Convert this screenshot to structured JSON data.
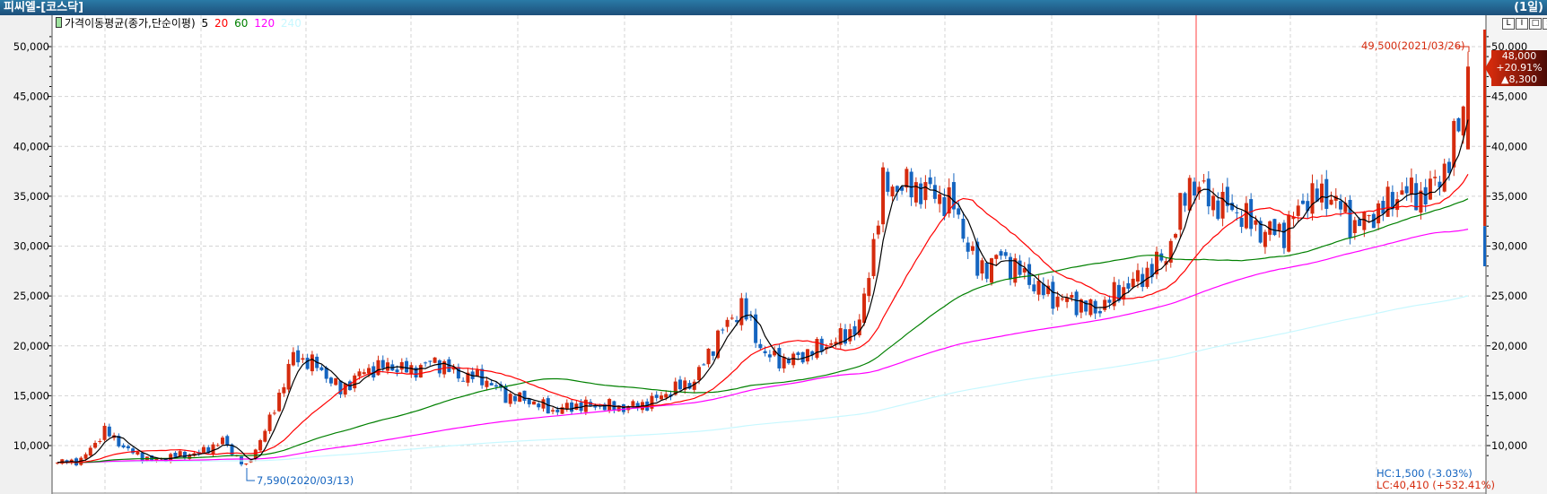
{
  "window": {
    "title": "피씨엘-[코스닥]",
    "period": "(1일)"
  },
  "legend": {
    "name": "가격이동평균(종가,단순이평)",
    "periods": [
      {
        "label": "5",
        "color": "#000000"
      },
      {
        "label": "20",
        "color": "#ff0000"
      },
      {
        "label": "60",
        "color": "#008000"
      },
      {
        "label": "120",
        "color": "#ff00ff"
      },
      {
        "label": "240",
        "color": "#c8f8ff"
      }
    ]
  },
  "window_buttons": [
    "L",
    "I",
    "□",
    "×"
  ],
  "current": {
    "price": "48,000",
    "change_pct": "+20.91%",
    "change": "▲8,300"
  },
  "annotations": {
    "high": "49,500(2021/03/26)",
    "low": "7,590(2020/03/13)",
    "hc": "HC:1,500 (-3.03%)",
    "lc": "LC:40,410 (+532.41%)"
  },
  "colors": {
    "up": "#d52b0e",
    "down": "#1565c0",
    "cursor": "#ff4040",
    "grid": "#d4d4d4"
  },
  "chart_data": {
    "type": "candlestick",
    "title": "피씨엘-[코스닥] (1일)",
    "ylim": [
      8000,
      52000
    ],
    "yticks": [
      10000,
      15000,
      20000,
      25000,
      30000,
      35000,
      40000,
      45000,
      50000
    ],
    "ytick_labels": [
      "10,000",
      "15,000",
      "20,000",
      "25,000",
      "30,000",
      "35,000",
      "40,000",
      "45,000",
      "50,000"
    ],
    "candle_count": 300,
    "anchor_step_days": 5,
    "approx_closes_every_5_days": [
      8300,
      8500,
      11500,
      9500,
      8500,
      9000,
      9200,
      10500,
      7800,
      12500,
      19000,
      18000,
      15500,
      17500,
      18000,
      17500,
      18500,
      17000,
      16800,
      15000,
      14500,
      13500,
      14000,
      14000,
      13800,
      14200,
      15500,
      16500,
      21000,
      24000,
      19000,
      18500,
      19500,
      20500,
      22000,
      36000,
      36000,
      35500,
      34000,
      27500,
      29000,
      27000,
      25000,
      24500,
      23500,
      25500,
      27000,
      29000,
      36500,
      34500,
      33500,
      31500,
      31500,
      35000,
      35000,
      32000,
      33500,
      35500,
      35000,
      38500,
      48000
    ],
    "last_candle": {
      "open": 39700,
      "high": 49500,
      "low": 39700,
      "close": 48000
    },
    "period_low": 7590,
    "period_high": 49500,
    "moving_averages": [
      5,
      20,
      60,
      120,
      240
    ]
  }
}
